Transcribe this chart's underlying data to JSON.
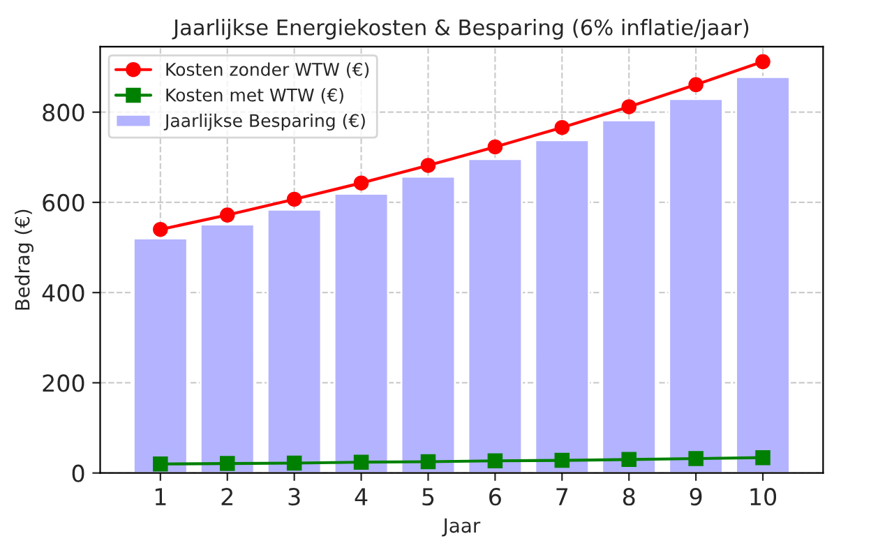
{
  "chart_data": {
    "type": "bar",
    "title": "Jaarlijkse Energiekosten & Besparing (6% inflatie/jaar)",
    "xlabel": "Jaar",
    "ylabel": "Bedrag (€)",
    "x": [
      1,
      2,
      3,
      4,
      5,
      6,
      7,
      8,
      9,
      10
    ],
    "series": [
      {
        "name": "Kosten zonder WTW (€)",
        "type": "line",
        "color": "#ff0000",
        "marker": "circle",
        "values": [
          540,
          572,
          607,
          643,
          682,
          723,
          766,
          812,
          861,
          912
        ]
      },
      {
        "name": "Kosten met WTW (€)",
        "type": "line",
        "color": "#008000",
        "marker": "square",
        "values": [
          20,
          21,
          22,
          24,
          25,
          27,
          28,
          30,
          32,
          34
        ]
      },
      {
        "name": "Jaarlijkse Besparing (€)",
        "color": "#b3b3ff",
        "values": [
          520,
          551,
          584,
          619,
          657,
          696,
          738,
          782,
          829,
          878
        ]
      }
    ],
    "xlim": [
      0.1,
      10.9
    ],
    "xticks": [
      1,
      2,
      3,
      4,
      5,
      6,
      7,
      8,
      9,
      10
    ],
    "ylim": [
      0,
      945
    ],
    "yticks": [
      0,
      200,
      400,
      600,
      800
    ],
    "grid": true,
    "legend": "top left"
  }
}
